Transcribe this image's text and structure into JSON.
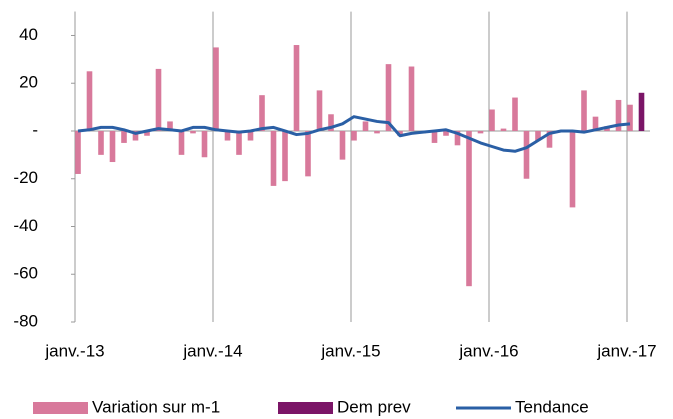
{
  "chart_data": {
    "type": "bar",
    "categories": [
      "janv.-13",
      null,
      null,
      null,
      null,
      null,
      null,
      null,
      null,
      null,
      null,
      null,
      "janv.-14",
      null,
      null,
      null,
      null,
      null,
      null,
      null,
      null,
      null,
      null,
      null,
      "janv.-15",
      null,
      null,
      null,
      null,
      null,
      null,
      null,
      null,
      null,
      null,
      null,
      "janv.-16",
      null,
      null,
      null,
      null,
      null,
      null,
      null,
      null,
      null,
      null,
      null,
      "janv.-17",
      null
    ],
    "series": [
      {
        "name": "Variation sur m-1",
        "color": "#d8799b",
        "kind": "bar",
        "values": [
          -18,
          25,
          -10,
          -13,
          -5,
          -4,
          -2,
          26,
          4,
          -10,
          -1,
          -11,
          35,
          -4,
          -10,
          -4,
          15,
          -23,
          -21,
          36,
          -19,
          17,
          7,
          -12,
          -4,
          4,
          -1,
          28,
          -2,
          27,
          -1,
          -5,
          -2,
          -6,
          -65,
          -1,
          9,
          1,
          14,
          -20,
          -4,
          -7,
          0,
          -32,
          17,
          6,
          2,
          13,
          11,
          null
        ]
      },
      {
        "name": "Dem prev",
        "color": "#7b1567",
        "kind": "bar",
        "values": [
          null,
          null,
          null,
          null,
          null,
          null,
          null,
          null,
          null,
          null,
          null,
          null,
          null,
          null,
          null,
          null,
          null,
          null,
          null,
          null,
          null,
          null,
          null,
          null,
          null,
          null,
          null,
          null,
          null,
          null,
          null,
          null,
          null,
          null,
          null,
          null,
          null,
          null,
          null,
          null,
          null,
          null,
          null,
          null,
          null,
          null,
          null,
          null,
          null,
          16
        ]
      },
      {
        "name": "Tendance",
        "color": "#2a5fa5",
        "kind": "line",
        "values": [
          0,
          0.5,
          1.5,
          1.5,
          0.5,
          -1,
          0,
          1,
          0.5,
          0,
          1.5,
          1.5,
          0.5,
          0,
          -0.5,
          0,
          1,
          1.5,
          0,
          -1.5,
          -1,
          0.5,
          1.5,
          3,
          6,
          5,
          4,
          3.5,
          -2,
          -1,
          -0.5,
          0,
          0.5,
          -1,
          -3,
          -5,
          -6.5,
          -8,
          -8.5,
          -7,
          -4,
          -1,
          0,
          0,
          -0.5,
          0.5,
          1.5,
          2.5,
          3,
          null
        ]
      }
    ],
    "ylim": [
      -80,
      50
    ],
    "yticks": [
      40,
      20,
      {
        "value": 0,
        "label": "-"
      },
      -20,
      -40,
      -60,
      -80
    ],
    "legend": "bottom"
  }
}
